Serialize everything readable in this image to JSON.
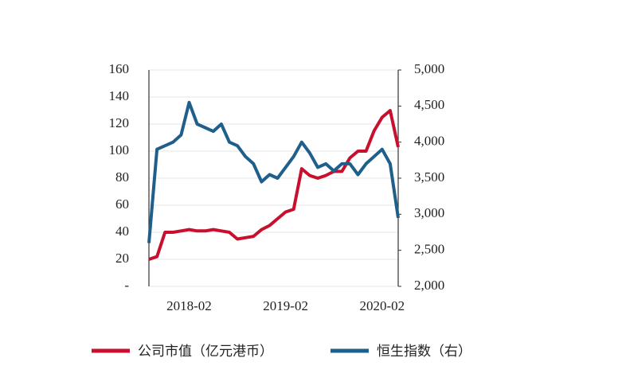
{
  "chart_data": {
    "type": "line",
    "categories": [
      "2017-09",
      "2017-10",
      "2017-11",
      "2017-12",
      "2018-01",
      "2018-02",
      "2018-03",
      "2018-04",
      "2018-05",
      "2018-06",
      "2018-07",
      "2018-08",
      "2018-09",
      "2018-10",
      "2018-11",
      "2018-12",
      "2019-01",
      "2019-02",
      "2019-03",
      "2019-04",
      "2019-05",
      "2019-06",
      "2019-07",
      "2019-08",
      "2019-09",
      "2019-10",
      "2019-11",
      "2019-12",
      "2020-01",
      "2020-02",
      "2020-03",
      "2020-04"
    ],
    "xticks": [
      "2018-02",
      "2019-02",
      "2020-02"
    ],
    "series": [
      {
        "name": "公司市值（亿元港币）",
        "color": "#c8102e",
        "values": [
          20,
          22,
          40,
          40,
          41,
          42,
          41,
          41,
          42,
          41,
          40,
          35,
          36,
          37,
          42,
          45,
          50,
          55,
          57,
          87,
          82,
          80,
          82,
          85,
          85,
          95,
          100,
          100,
          115,
          125,
          130,
          103
        ]
      },
      {
        "name": "恒生指数（右）",
        "color": "#1f5f8b",
        "axis": "y2",
        "values": [
          2600,
          3900,
          3950,
          4000,
          4100,
          4550,
          4250,
          4200,
          4150,
          4250,
          4000,
          3950,
          3800,
          3700,
          3450,
          3550,
          3500,
          3650,
          3800,
          4000,
          3850,
          3650,
          3700,
          3600,
          3700,
          3700,
          3550,
          3700,
          3800,
          3900,
          3700,
          2950
        ]
      }
    ],
    "ylim": [
      0,
      160
    ],
    "yticks": [
      {
        "value": 0,
        "label": "-"
      },
      20,
      40,
      60,
      80,
      100,
      120,
      140,
      160
    ],
    "y2lim": [
      2000,
      5000
    ],
    "y2ticks": [
      {
        "value": 2000,
        "label": "2,000"
      },
      {
        "value": 2500,
        "label": "2,500"
      },
      {
        "value": 3000,
        "label": "3,000"
      },
      {
        "value": 3500,
        "label": "3,500"
      },
      {
        "value": 4000,
        "label": "4,000"
      },
      {
        "value": 4500,
        "label": "4,500"
      },
      {
        "value": 5000,
        "label": "5,000"
      }
    ],
    "grid": true,
    "legend": "bottom"
  }
}
